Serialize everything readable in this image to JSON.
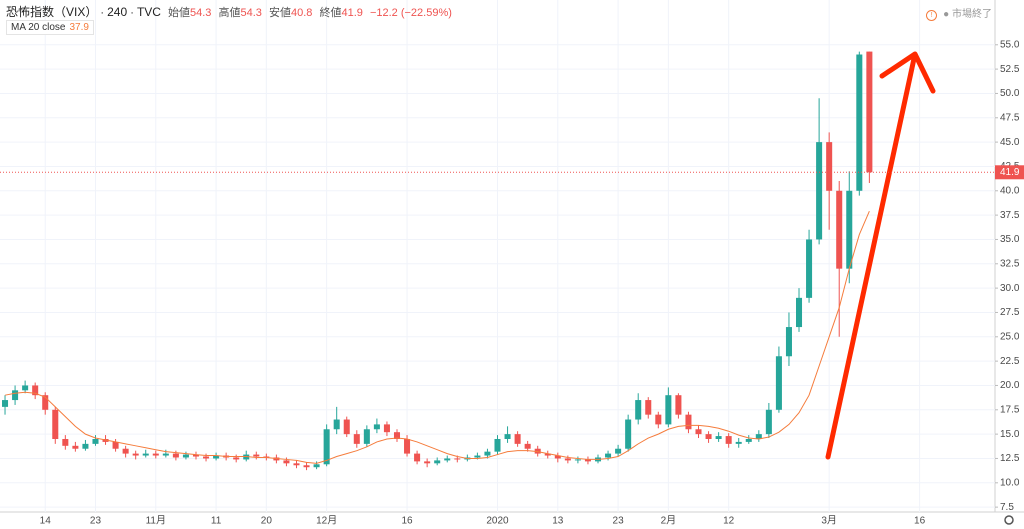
{
  "chart_data": {
    "type": "candlestick",
    "title": "恐怖指数（VIX）",
    "interval": "240",
    "exchange": "TVC",
    "ohlc_labels": [
      "始値",
      "高値",
      "安値",
      "終値"
    ],
    "change": "−12.2 (−22.59%)",
    "status": "市場終了",
    "up_color": "#26a69a",
    "down_color": "#ef5350",
    "categories": [
      null,
      null,
      null,
      null,
      "14",
      null,
      null,
      null,
      null,
      "23",
      null,
      null,
      null,
      null,
      null,
      "11月",
      null,
      null,
      null,
      null,
      null,
      "11",
      null,
      null,
      null,
      null,
      "20",
      null,
      null,
      null,
      null,
      null,
      "12月",
      null,
      null,
      null,
      null,
      null,
      null,
      null,
      "16",
      null,
      null,
      null,
      null,
      null,
      null,
      null,
      null,
      "2020",
      null,
      null,
      null,
      null,
      null,
      "13",
      null,
      null,
      null,
      null,
      null,
      "23",
      null,
      null,
      null,
      null,
      "2月",
      null,
      null,
      null,
      null,
      null,
      "12",
      null,
      null,
      null,
      null,
      null,
      null,
      null,
      null,
      null,
      "3月",
      null,
      null,
      null,
      null,
      null,
      null,
      null,
      null,
      "16",
      null,
      null,
      null,
      null,
      null,
      null,
      null
    ],
    "open": [
      17.8,
      18.5,
      19.5,
      20.0,
      19.0,
      17.5,
      14.5,
      13.8,
      13.5,
      14.0,
      14.5,
      14.2,
      13.5,
      13.0,
      12.8,
      13.0,
      12.8,
      13.0,
      12.6,
      12.9,
      12.7,
      12.5,
      12.8,
      12.6,
      12.4,
      12.9,
      12.7,
      12.6,
      12.3,
      12.0,
      11.8,
      11.6,
      11.9,
      15.5,
      16.5,
      15.0,
      14.0,
      15.5,
      16.0,
      15.2,
      14.5,
      13.0,
      12.2,
      12.0,
      12.3,
      12.5,
      12.4,
      12.6,
      12.8,
      13.2,
      14.5,
      15.0,
      14.0,
      13.5,
      13.0,
      12.8,
      12.5,
      12.3,
      12.4,
      12.2,
      12.6,
      13.0,
      13.5,
      16.5,
      18.5,
      17.0,
      16.0,
      19.0,
      17.0,
      15.5,
      15.0,
      14.5,
      14.8,
      14.0,
      14.2,
      14.5,
      15.0,
      17.5,
      23.0,
      26.0,
      29.0,
      35.0,
      45.0,
      40.0,
      32.0,
      40.0,
      54.3,
      null,
      null,
      null,
      null,
      null,
      null,
      null,
      null,
      null,
      null,
      null,
      null
    ],
    "high": [
      19.0,
      20.0,
      20.5,
      20.3,
      19.3,
      17.8,
      14.9,
      14.2,
      14.4,
      14.9,
      14.9,
      14.5,
      13.8,
      13.3,
      13.4,
      13.3,
      13.4,
      13.3,
      13.2,
      13.2,
      13.0,
      13.1,
      13.1,
      12.9,
      13.3,
      13.2,
      13.0,
      12.9,
      12.6,
      12.3,
      12.1,
      12.2,
      16.0,
      17.8,
      16.8,
      15.4,
      15.9,
      16.6,
      16.3,
      15.5,
      14.9,
      13.3,
      12.5,
      12.6,
      12.8,
      12.8,
      12.9,
      13.1,
      13.5,
      14.9,
      15.8,
      15.3,
      14.3,
      13.8,
      13.3,
      13.1,
      12.8,
      12.7,
      12.7,
      12.9,
      13.3,
      13.9,
      17.0,
      19.2,
      18.8,
      17.3,
      19.8,
      19.2,
      17.3,
      15.9,
      15.3,
      15.2,
      15.1,
      14.6,
      14.9,
      15.4,
      18.2,
      24.0,
      27.5,
      30.0,
      36.0,
      49.5,
      46.0,
      41.0,
      42.0,
      54.3,
      54.3,
      null,
      null,
      null,
      null,
      null,
      null,
      null,
      null,
      null,
      null,
      null,
      null
    ],
    "low": [
      17.0,
      18.0,
      19.2,
      18.6,
      17.0,
      14.0,
      13.4,
      13.2,
      13.3,
      13.8,
      13.9,
      13.2,
      12.6,
      12.4,
      12.6,
      12.5,
      12.6,
      12.3,
      12.4,
      12.4,
      12.2,
      12.3,
      12.3,
      12.1,
      12.2,
      12.4,
      12.3,
      12.0,
      11.7,
      11.5,
      11.3,
      11.4,
      11.7,
      15.0,
      14.7,
      13.6,
      13.7,
      15.1,
      14.8,
      14.2,
      12.7,
      11.9,
      11.6,
      11.8,
      12.1,
      12.1,
      12.2,
      12.4,
      12.5,
      12.9,
      14.1,
      13.7,
      13.2,
      12.7,
      12.5,
      12.1,
      12.0,
      12.0,
      11.9,
      12.0,
      12.3,
      12.7,
      13.2,
      16.0,
      16.6,
      15.6,
      15.7,
      16.6,
      15.1,
      14.6,
      14.1,
      14.2,
      13.6,
      13.6,
      14.0,
      14.2,
      14.6,
      17.2,
      22.0,
      25.5,
      28.5,
      34.5,
      36.0,
      25.0,
      30.5,
      39.5,
      40.8,
      null,
      null,
      null,
      null,
      null,
      null,
      null,
      null,
      null,
      null,
      null,
      null
    ],
    "close": [
      18.5,
      19.5,
      20.0,
      19.0,
      17.5,
      14.5,
      13.8,
      13.5,
      14.0,
      14.5,
      14.2,
      13.5,
      13.0,
      12.8,
      13.0,
      12.8,
      13.0,
      12.6,
      12.9,
      12.7,
      12.5,
      12.8,
      12.6,
      12.4,
      12.9,
      12.7,
      12.6,
      12.3,
      12.0,
      11.8,
      11.6,
      11.9,
      15.5,
      16.5,
      15.0,
      14.0,
      15.5,
      16.0,
      15.2,
      14.5,
      13.0,
      12.2,
      12.0,
      12.3,
      12.5,
      12.4,
      12.6,
      12.8,
      13.2,
      14.5,
      15.0,
      14.0,
      13.5,
      13.0,
      12.8,
      12.5,
      12.3,
      12.4,
      12.2,
      12.6,
      13.0,
      13.5,
      16.5,
      18.5,
      17.0,
      16.0,
      19.0,
      17.0,
      15.5,
      15.0,
      14.5,
      14.8,
      14.0,
      14.2,
      14.5,
      15.0,
      17.5,
      23.0,
      26.0,
      29.0,
      35.0,
      45.0,
      40.0,
      32.0,
      40.0,
      54.0,
      41.9,
      null,
      null,
      null,
      null,
      null,
      null,
      null,
      null,
      null,
      null,
      null,
      null
    ],
    "ma": {
      "name": "MA 20 close",
      "color": "#f57c3c",
      "values": [
        19.0,
        19.2,
        19.3,
        19.2,
        18.8,
        17.8,
        16.8,
        15.8,
        15.0,
        14.6,
        14.4,
        14.2,
        14.0,
        13.8,
        13.6,
        13.4,
        13.2,
        13.1,
        13.0,
        12.9,
        12.8,
        12.8,
        12.7,
        12.7,
        12.7,
        12.6,
        12.6,
        12.5,
        12.4,
        12.3,
        12.1,
        12.0,
        12.3,
        12.7,
        13.0,
        13.3,
        13.7,
        14.2,
        14.5,
        14.6,
        14.5,
        14.2,
        13.8,
        13.4,
        13.0,
        12.7,
        12.5,
        12.5,
        12.6,
        12.9,
        13.2,
        13.3,
        13.3,
        13.2,
        13.0,
        12.8,
        12.6,
        12.5,
        12.4,
        12.4,
        12.5,
        12.7,
        13.3,
        14.0,
        14.6,
        15.0,
        15.5,
        15.8,
        15.9,
        15.9,
        15.8,
        15.6,
        15.3,
        14.9,
        14.6,
        14.5,
        14.7,
        15.2,
        16.0,
        17.2,
        19.0,
        22.0,
        25.0,
        28.0,
        32.0,
        35.5,
        37.9,
        null,
        null,
        null,
        null,
        null,
        null,
        null,
        null,
        null,
        null,
        null,
        null
      ]
    },
    "ylim": [
      7.0,
      59.6
    ],
    "yticks": [
      7.5,
      {
        "value": 10,
        "label": "10.0"
      },
      12.5,
      {
        "value": 15,
        "label": "15.0"
      },
      17.5,
      {
        "value": 20,
        "label": "20.0"
      },
      22.5,
      {
        "value": 25,
        "label": "25.0"
      },
      27.5,
      {
        "value": 30,
        "label": "30.0"
      },
      32.5,
      {
        "value": 35,
        "label": "35.0"
      },
      37.5,
      {
        "value": 40,
        "label": "40.0"
      },
      42.5,
      {
        "value": 45,
        "label": "45.0"
      },
      47.5,
      {
        "value": 50,
        "label": "50.0"
      },
      52.5,
      {
        "value": 55,
        "label": "55.0"
      }
    ],
    "grid": true
  }
}
